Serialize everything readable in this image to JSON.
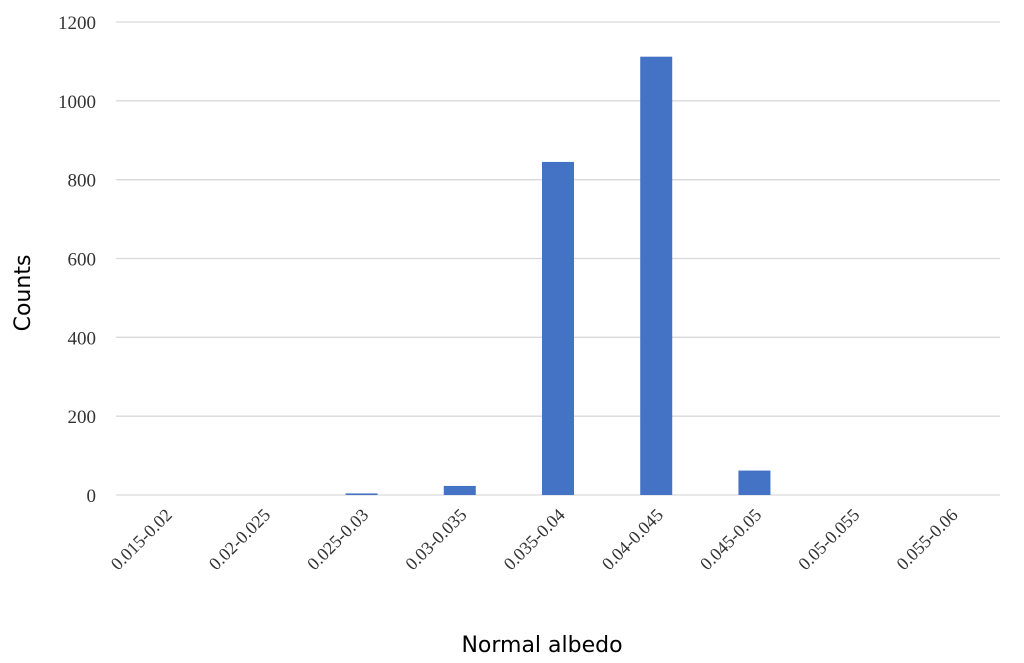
{
  "chart_data": {
    "type": "bar",
    "title": "",
    "xlabel": "Normal albedo",
    "ylabel": "Counts",
    "categories": [
      "0.015-0.02",
      "0.02-0.025",
      "0.025-0.03",
      "0.03-0.035",
      "0.035-0.04",
      "0.04-0.045",
      "0.045-0.05",
      "0.05-0.055",
      "0.055-0.06"
    ],
    "values": [
      0,
      0,
      4,
      23,
      845,
      1112,
      62,
      0,
      0
    ],
    "ylim": [
      0,
      1200
    ],
    "yticks": [
      0,
      200,
      400,
      600,
      800,
      1000,
      1200
    ],
    "grid": true,
    "legend": "none",
    "bar_color": "#4472C4",
    "grid_color": "#D9D9D9"
  }
}
